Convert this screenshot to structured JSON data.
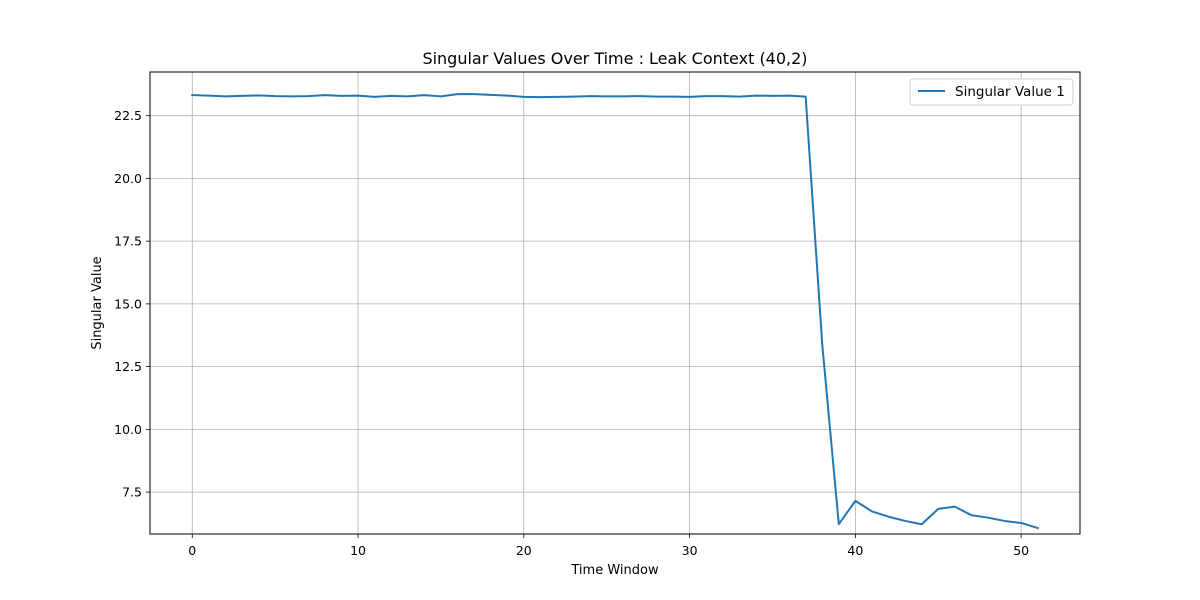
{
  "chart_data": {
    "type": "line",
    "title": "Singular Values Over Time : Leak Context (40,2)",
    "xlabel": "Time Window",
    "ylabel": "Singular Value",
    "xlim": [
      -2.55,
      53.55
    ],
    "ylim": [
      5.83,
      24.24
    ],
    "xticks": [
      0,
      10,
      20,
      30,
      40,
      50
    ],
    "xtick_labels": [
      "0",
      "10",
      "20",
      "30",
      "40",
      "50"
    ],
    "yticks": [
      7.5,
      10.0,
      12.5,
      15.0,
      17.5,
      20.0,
      22.5
    ],
    "ytick_labels": [
      "7.5",
      "10.0",
      "12.5",
      "15.0",
      "17.5",
      "20.0",
      "22.5"
    ],
    "grid": true,
    "legend": "top-right",
    "series": [
      {
        "name": "Singular Value 1",
        "color": "#1f77b4",
        "x": [
          0,
          1,
          2,
          3,
          4,
          5,
          6,
          7,
          8,
          9,
          10,
          11,
          12,
          13,
          14,
          15,
          16,
          17,
          18,
          19,
          20,
          21,
          22,
          23,
          24,
          25,
          26,
          27,
          28,
          29,
          30,
          31,
          32,
          33,
          34,
          35,
          36,
          37,
          38,
          39,
          40,
          41,
          42,
          43,
          44,
          45,
          46,
          47,
          48,
          49,
          50,
          51
        ],
        "y": [
          23.32,
          23.3,
          23.27,
          23.29,
          23.31,
          23.28,
          23.27,
          23.28,
          23.32,
          23.29,
          23.3,
          23.25,
          23.29,
          23.27,
          23.32,
          23.27,
          23.36,
          23.36,
          23.33,
          23.3,
          23.25,
          23.24,
          23.25,
          23.26,
          23.28,
          23.27,
          23.27,
          23.28,
          23.26,
          23.26,
          23.25,
          23.28,
          23.28,
          23.26,
          23.3,
          23.29,
          23.3,
          23.26,
          13.4,
          6.22,
          7.15,
          6.73,
          6.52,
          6.35,
          6.22,
          6.83,
          6.92,
          6.58,
          6.48,
          6.35,
          6.27,
          6.07
        ]
      }
    ]
  }
}
